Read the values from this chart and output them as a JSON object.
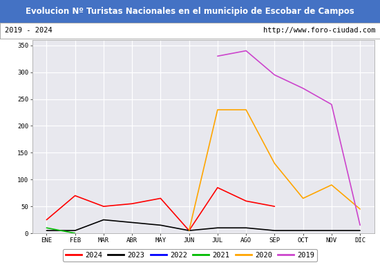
{
  "title": "Evolucion Nº Turistas Nacionales en el municipio de Escobar de Campos",
  "subtitle_left": "2019 - 2024",
  "subtitle_right": "http://www.foro-ciudad.com",
  "months": [
    "ENE",
    "FEB",
    "MAR",
    "ABR",
    "MAY",
    "JUN",
    "JUL",
    "AGO",
    "SEP",
    "OCT",
    "NOV",
    "DIC"
  ],
  "series": {
    "2024": {
      "color": "#ff0000",
      "values": [
        25,
        70,
        50,
        55,
        65,
        5,
        85,
        60,
        50,
        null,
        null,
        null
      ]
    },
    "2023": {
      "color": "#000000",
      "values": [
        5,
        5,
        25,
        20,
        15,
        5,
        10,
        10,
        5,
        5,
        5,
        5
      ]
    },
    "2022": {
      "color": "#0000ff",
      "values": [
        null,
        null,
        null,
        null,
        null,
        null,
        null,
        null,
        null,
        null,
        null,
        null
      ]
    },
    "2021": {
      "color": "#00bb00",
      "values": [
        10,
        0,
        null,
        null,
        null,
        null,
        null,
        null,
        null,
        null,
        null,
        null
      ]
    },
    "2020": {
      "color": "#ffa500",
      "values": [
        null,
        null,
        null,
        null,
        null,
        5,
        230,
        230,
        130,
        65,
        90,
        45
      ]
    },
    "2019": {
      "color": "#cc44cc",
      "values": [
        null,
        null,
        null,
        null,
        null,
        null,
        330,
        340,
        295,
        270,
        240,
        15
      ]
    }
  },
  "ylim": [
    0,
    360
  ],
  "yticks": [
    0,
    50,
    100,
    150,
    200,
    250,
    300,
    350
  ],
  "title_bg": "#4472c4",
  "title_color": "#ffffff",
  "subtitle_bg": "#ffffff",
  "plot_bg": "#e8e8ee",
  "grid_color": "#ffffff",
  "border_color": "#aaaaaa",
  "legend_order": [
    "2024",
    "2023",
    "2022",
    "2021",
    "2020",
    "2019"
  ],
  "figsize": [
    5.5,
    4.0
  ],
  "dpi": 100
}
